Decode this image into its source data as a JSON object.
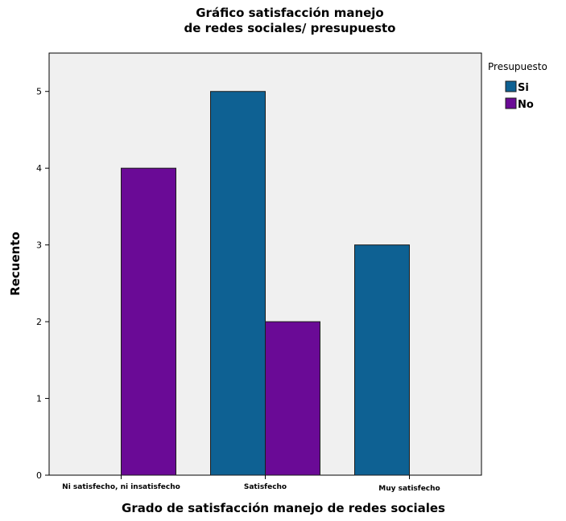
{
  "chart_data": {
    "type": "bar",
    "title": [
      "Gráfico  satisfacción manejo",
      "de redes sociales/ presupuesto"
    ],
    "xlabel": "Grado de satisfacción manejo de redes sociales",
    "ylabel": "Recuento",
    "categories": [
      "Ni satisfecho, ni insatisfecho",
      "Satisfecho",
      "Muy satisfecho"
    ],
    "series": [
      {
        "name": "Si",
        "values": [
          0,
          5,
          3
        ],
        "color": "#0e6193"
      },
      {
        "name": "No",
        "values": [
          4,
          2,
          0
        ],
        "color": "#6a0a96"
      }
    ],
    "ylim": [
      0,
      5.5
    ],
    "yticks": [
      0,
      1,
      2,
      3,
      4,
      5
    ],
    "legend": {
      "title": "Presupuesto",
      "placement": "right"
    },
    "plot_background": "#f0f0f0",
    "grid": false
  }
}
